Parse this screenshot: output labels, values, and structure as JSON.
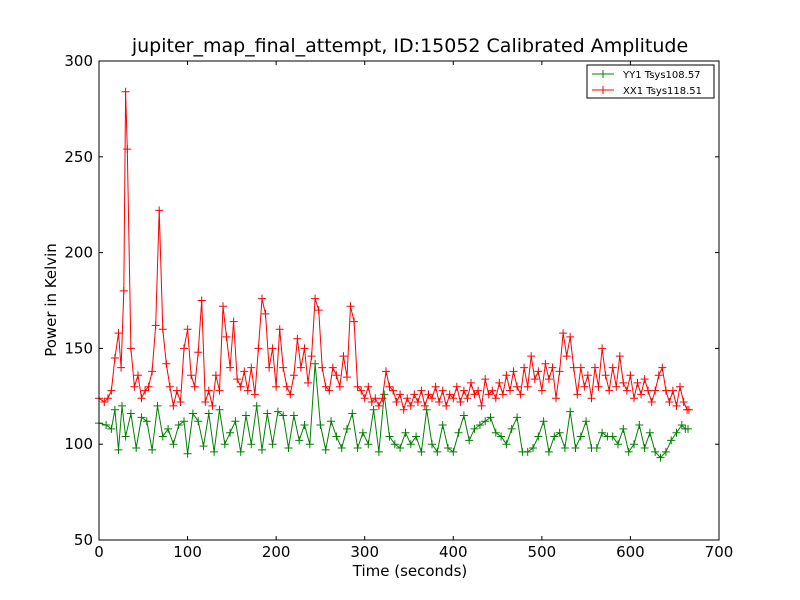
{
  "chart_data": {
    "type": "line",
    "title": "jupiter_map_final_attempt, ID:15052 Calibrated Amplitude",
    "xlabel": "Time (seconds)",
    "ylabel": "Power in Kelvin",
    "xlim": [
      0,
      700
    ],
    "ylim": [
      50,
      300
    ],
    "xticks": [
      0,
      100,
      200,
      300,
      400,
      500,
      600,
      700
    ],
    "yticks": [
      50,
      100,
      150,
      200,
      250,
      300
    ],
    "xtick_labels": [
      "0",
      "100",
      "200",
      "300",
      "400",
      "500",
      "600",
      "700"
    ],
    "ytick_labels": [
      "50",
      "100",
      "150",
      "200",
      "250",
      "300"
    ],
    "grid": false,
    "legend_position": "top-right",
    "marker": "plus",
    "series": [
      {
        "name": "YY1 Tsys108.57",
        "color": "#008000",
        "points": [
          [
            0,
            111
          ],
          [
            8,
            110
          ],
          [
            14,
            108
          ],
          [
            18,
            118
          ],
          [
            22,
            97
          ],
          [
            26,
            120
          ],
          [
            30,
            104
          ],
          [
            36,
            116
          ],
          [
            42,
            98
          ],
          [
            48,
            114
          ],
          [
            54,
            112
          ],
          [
            60,
            97
          ],
          [
            66,
            120
          ],
          [
            72,
            104
          ],
          [
            78,
            108
          ],
          [
            84,
            100
          ],
          [
            90,
            110
          ],
          [
            96,
            112
          ],
          [
            100,
            95
          ],
          [
            106,
            116
          ],
          [
            112,
            112
          ],
          [
            118,
            99
          ],
          [
            124,
            116
          ],
          [
            130,
            96
          ],
          [
            136,
            118
          ],
          [
            142,
            100
          ],
          [
            148,
            106
          ],
          [
            154,
            112
          ],
          [
            160,
            96
          ],
          [
            166,
            115
          ],
          [
            172,
            100
          ],
          [
            178,
            120
          ],
          [
            184,
            97
          ],
          [
            190,
            116
          ],
          [
            196,
            100
          ],
          [
            202,
            117
          ],
          [
            208,
            115
          ],
          [
            214,
            98
          ],
          [
            220,
            115
          ],
          [
            226,
            102
          ],
          [
            232,
            110
          ],
          [
            238,
            100
          ],
          [
            244,
            142
          ],
          [
            250,
            110
          ],
          [
            256,
            97
          ],
          [
            262,
            112
          ],
          [
            268,
            104
          ],
          [
            274,
            98
          ],
          [
            280,
            108
          ],
          [
            286,
            116
          ],
          [
            292,
            98
          ],
          [
            298,
            106
          ],
          [
            304,
            100
          ],
          [
            310,
            118
          ],
          [
            316,
            96
          ],
          [
            322,
            126
          ],
          [
            328,
            104
          ],
          [
            334,
            100
          ],
          [
            340,
            98
          ],
          [
            346,
            106
          ],
          [
            352,
            100
          ],
          [
            358,
            104
          ],
          [
            364,
            96
          ],
          [
            370,
            118
          ],
          [
            376,
            100
          ],
          [
            382,
            96
          ],
          [
            388,
            110
          ],
          [
            394,
            98
          ],
          [
            400,
            96
          ],
          [
            406,
            106
          ],
          [
            412,
            115
          ],
          [
            418,
            102
          ],
          [
            424,
            108
          ],
          [
            430,
            110
          ],
          [
            436,
            112
          ],
          [
            442,
            114
          ],
          [
            448,
            106
          ],
          [
            454,
            104
          ],
          [
            460,
            100
          ],
          [
            466,
            108
          ],
          [
            472,
            114
          ],
          [
            478,
            96
          ],
          [
            484,
            96
          ],
          [
            490,
            98
          ],
          [
            496,
            104
          ],
          [
            502,
            112
          ],
          [
            508,
            96
          ],
          [
            514,
            104
          ],
          [
            520,
            106
          ],
          [
            526,
            98
          ],
          [
            532,
            117
          ],
          [
            538,
            98
          ],
          [
            544,
            104
          ],
          [
            550,
            112
          ],
          [
            556,
            98
          ],
          [
            562,
            98
          ],
          [
            568,
            106
          ],
          [
            574,
            104
          ],
          [
            580,
            104
          ],
          [
            586,
            100
          ],
          [
            592,
            108
          ],
          [
            598,
            96
          ],
          [
            604,
            100
          ],
          [
            610,
            110
          ],
          [
            616,
            98
          ],
          [
            622,
            106
          ],
          [
            628,
            96
          ],
          [
            634,
            93
          ],
          [
            640,
            96
          ],
          [
            646,
            102
          ],
          [
            652,
            106
          ],
          [
            658,
            110
          ],
          [
            662,
            108
          ],
          [
            665,
            108
          ]
        ]
      },
      {
        "name": "XX1 Tsys118.51",
        "color": "#ff0000",
        "points": [
          [
            0,
            124
          ],
          [
            6,
            122
          ],
          [
            10,
            124
          ],
          [
            14,
            128
          ],
          [
            18,
            145
          ],
          [
            22,
            158
          ],
          [
            25,
            140
          ],
          [
            28,
            180
          ],
          [
            30,
            284
          ],
          [
            32,
            254
          ],
          [
            36,
            150
          ],
          [
            40,
            130
          ],
          [
            44,
            136
          ],
          [
            48,
            124
          ],
          [
            52,
            128
          ],
          [
            56,
            130
          ],
          [
            60,
            138
          ],
          [
            64,
            162
          ],
          [
            68,
            222
          ],
          [
            72,
            160
          ],
          [
            76,
            142
          ],
          [
            80,
            130
          ],
          [
            84,
            120
          ],
          [
            88,
            128
          ],
          [
            92,
            122
          ],
          [
            96,
            150
          ],
          [
            100,
            160
          ],
          [
            104,
            136
          ],
          [
            108,
            130
          ],
          [
            112,
            148
          ],
          [
            116,
            175
          ],
          [
            120,
            122
          ],
          [
            124,
            128
          ],
          [
            128,
            120
          ],
          [
            132,
            136
          ],
          [
            136,
            128
          ],
          [
            140,
            172
          ],
          [
            144,
            156
          ],
          [
            148,
            140
          ],
          [
            152,
            164
          ],
          [
            156,
            134
          ],
          [
            160,
            130
          ],
          [
            164,
            138
          ],
          [
            168,
            128
          ],
          [
            172,
            140
          ],
          [
            176,
            126
          ],
          [
            180,
            150
          ],
          [
            184,
            176
          ],
          [
            188,
            168
          ],
          [
            192,
            140
          ],
          [
            196,
            150
          ],
          [
            200,
            130
          ],
          [
            204,
            160
          ],
          [
            208,
            140
          ],
          [
            212,
            130
          ],
          [
            216,
            126
          ],
          [
            220,
            136
          ],
          [
            224,
            155
          ],
          [
            228,
            140
          ],
          [
            232,
            150
          ],
          [
            236,
            132
          ],
          [
            240,
            146
          ],
          [
            244,
            176
          ],
          [
            248,
            170
          ],
          [
            252,
            140
          ],
          [
            256,
            130
          ],
          [
            260,
            128
          ],
          [
            264,
            140
          ],
          [
            268,
            136
          ],
          [
            272,
            130
          ],
          [
            276,
            146
          ],
          [
            280,
            135
          ],
          [
            284,
            172
          ],
          [
            288,
            164
          ],
          [
            292,
            130
          ],
          [
            296,
            128
          ],
          [
            300,
            124
          ],
          [
            304,
            130
          ],
          [
            308,
            122
          ],
          [
            312,
            124
          ],
          [
            316,
            120
          ],
          [
            320,
            124
          ],
          [
            324,
            138
          ],
          [
            328,
            130
          ],
          [
            332,
            128
          ],
          [
            336,
            122
          ],
          [
            340,
            126
          ],
          [
            344,
            118
          ],
          [
            348,
            124
          ],
          [
            352,
            120
          ],
          [
            356,
            126
          ],
          [
            360,
            122
          ],
          [
            364,
            128
          ],
          [
            368,
            120
          ],
          [
            372,
            126
          ],
          [
            376,
            124
          ],
          [
            380,
            130
          ],
          [
            384,
            122
          ],
          [
            388,
            128
          ],
          [
            392,
            120
          ],
          [
            396,
            126
          ],
          [
            400,
            124
          ],
          [
            404,
            130
          ],
          [
            408,
            122
          ],
          [
            412,
            128
          ],
          [
            416,
            124
          ],
          [
            420,
            132
          ],
          [
            424,
            126
          ],
          [
            428,
            128
          ],
          [
            432,
            120
          ],
          [
            436,
            134
          ],
          [
            440,
            126
          ],
          [
            444,
            128
          ],
          [
            448,
            124
          ],
          [
            452,
            132
          ],
          [
            456,
            126
          ],
          [
            460,
            136
          ],
          [
            464,
            128
          ],
          [
            468,
            138
          ],
          [
            472,
            130
          ],
          [
            476,
            126
          ],
          [
            480,
            140
          ],
          [
            484,
            130
          ],
          [
            488,
            146
          ],
          [
            492,
            134
          ],
          [
            496,
            138
          ],
          [
            500,
            128
          ],
          [
            504,
            142
          ],
          [
            508,
            134
          ],
          [
            512,
            140
          ],
          [
            516,
            124
          ],
          [
            520,
            138
          ],
          [
            524,
            158
          ],
          [
            528,
            146
          ],
          [
            532,
            156
          ],
          [
            536,
            140
          ],
          [
            540,
            126
          ],
          [
            544,
            140
          ],
          [
            548,
            130
          ],
          [
            552,
            136
          ],
          [
            556,
            124
          ],
          [
            560,
            140
          ],
          [
            564,
            130
          ],
          [
            568,
            150
          ],
          [
            572,
            136
          ],
          [
            576,
            128
          ],
          [
            580,
            140
          ],
          [
            584,
            130
          ],
          [
            588,
            146
          ],
          [
            592,
            132
          ],
          [
            596,
            128
          ],
          [
            600,
            136
          ],
          [
            604,
            124
          ],
          [
            608,
            132
          ],
          [
            612,
            126
          ],
          [
            616,
            134
          ],
          [
            620,
            128
          ],
          [
            624,
            122
          ],
          [
            628,
            128
          ],
          [
            632,
            136
          ],
          [
            636,
            140
          ],
          [
            640,
            128
          ],
          [
            644,
            122
          ],
          [
            648,
            128
          ],
          [
            652,
            120
          ],
          [
            656,
            130
          ],
          [
            660,
            122
          ],
          [
            664,
            118
          ],
          [
            666,
            118
          ]
        ]
      }
    ]
  }
}
